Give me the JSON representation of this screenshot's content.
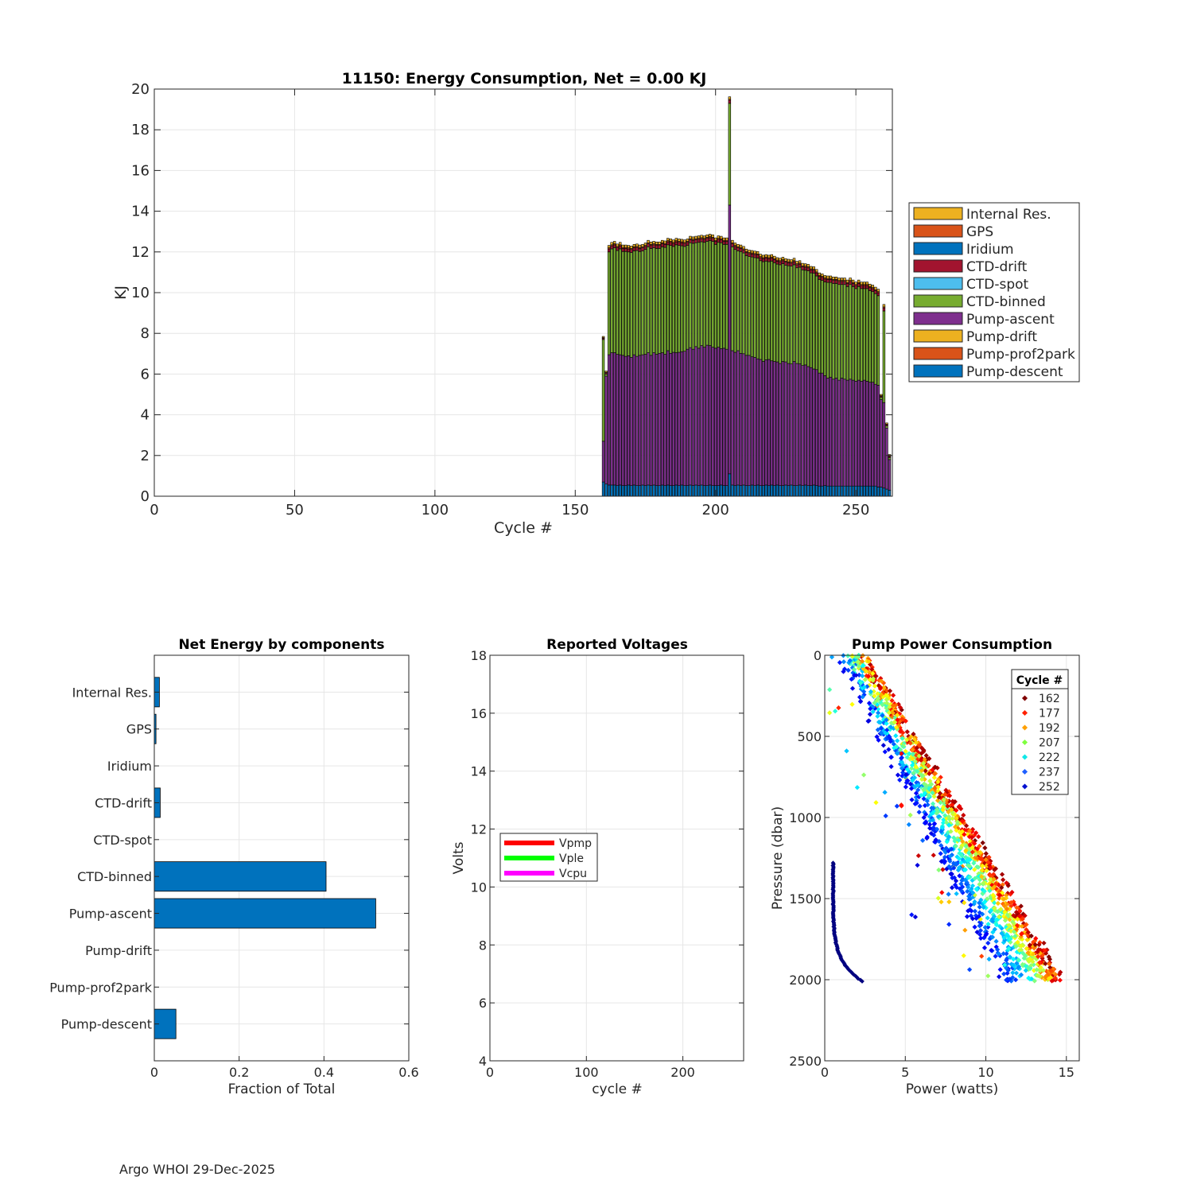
{
  "footer": "Argo WHOI 29-Dec-2025",
  "colors": {
    "internal_res": "#EDB120",
    "gps": "#D95319",
    "iridium": "#0072BD",
    "ctd_drift": "#A2142F",
    "ctd_spot": "#4DBEEE",
    "ctd_binned": "#77AC30",
    "pump_ascent": "#7E2F8E",
    "pump_drift": "#EDB120",
    "pump_prof2park": "#D95319",
    "pump_descent": "#0072BD",
    "grid": "#e6e6e6",
    "axis": "#262626",
    "vpmp": "#ff0000",
    "vple": "#00ff00",
    "vcpu": "#ff00ff"
  },
  "chart_data": [
    {
      "id": "energy",
      "type": "bar",
      "stacked": true,
      "title": "11150: Energy Consumption,  Net =   0.00 KJ",
      "xlabel": "Cycle #",
      "ylabel": "KJ",
      "xlim": [
        0,
        263
      ],
      "ylim": [
        0,
        20
      ],
      "xticks": [
        0,
        50,
        100,
        150,
        200,
        250
      ],
      "yticks": [
        0,
        2,
        4,
        6,
        8,
        10,
        12,
        14,
        16,
        18,
        20
      ],
      "grid": true,
      "legend_position": "outside-right",
      "legend": [
        "Internal Res.",
        "GPS",
        "Iridium",
        "CTD-drift",
        "CTD-spot",
        "CTD-binned",
        "Pump-ascent",
        "Pump-drift",
        "Pump-prof2park",
        "Pump-descent"
      ],
      "cycle_start": 160,
      "cycle_end": 262,
      "descent": [
        0.7,
        0.6,
        0.55,
        0.55,
        0.55,
        0.52,
        0.55,
        0.52,
        0.52,
        0.55,
        0.52,
        0.55,
        0.52,
        0.52,
        0.55,
        0.52,
        0.55,
        0.52,
        0.55,
        0.52,
        0.52,
        0.55,
        0.52,
        0.55,
        0.52,
        0.52,
        0.55,
        0.52,
        0.55,
        0.52,
        0.52,
        0.55,
        0.52,
        0.55,
        0.52,
        0.55,
        0.52,
        0.52,
        0.55,
        0.52,
        0.52,
        0.52,
        0.55,
        0.52,
        0.52,
        1.1,
        0.55,
        0.52,
        0.55,
        0.52,
        0.55,
        0.52,
        0.52,
        0.55,
        0.52,
        0.55,
        0.52,
        0.52,
        0.55,
        0.52,
        0.55,
        0.52,
        0.55,
        0.52,
        0.52,
        0.55,
        0.52,
        0.55,
        0.52,
        0.52,
        0.55,
        0.52,
        0.55,
        0.52,
        0.52,
        0.55,
        0.52,
        0.5,
        0.5,
        0.52,
        0.5,
        0.5,
        0.5,
        0.5,
        0.5,
        0.5,
        0.5,
        0.5,
        0.5,
        0.5,
        0.5,
        0.5,
        0.5,
        0.5,
        0.5,
        0.5,
        0.5,
        0.5,
        0.45,
        0.45,
        0.4,
        0.35,
        0.3
      ],
      "ascent": [
        2.0,
        5.3,
        6.4,
        6.5,
        6.5,
        6.45,
        6.4,
        6.4,
        6.35,
        6.35,
        6.3,
        6.4,
        6.35,
        6.4,
        6.4,
        6.45,
        6.5,
        6.4,
        6.5,
        6.45,
        6.5,
        6.5,
        6.45,
        6.6,
        6.5,
        6.55,
        6.5,
        6.55,
        6.55,
        6.6,
        6.7,
        6.75,
        6.7,
        6.8,
        6.75,
        6.85,
        6.8,
        6.9,
        6.85,
        6.8,
        6.75,
        6.8,
        6.7,
        6.75,
        6.7,
        13.2,
        6.6,
        6.55,
        6.6,
        6.5,
        6.45,
        6.4,
        6.4,
        6.3,
        6.3,
        6.2,
        6.2,
        6.1,
        6.15,
        6.2,
        6.1,
        6.1,
        6.05,
        6.0,
        6.1,
        6.05,
        6.0,
        5.95,
        6.1,
        6.0,
        5.95,
        5.9,
        5.9,
        5.85,
        5.8,
        5.7,
        5.7,
        5.55,
        5.55,
        5.4,
        5.3,
        5.35,
        5.25,
        5.3,
        5.2,
        5.3,
        5.25,
        5.2,
        5.25,
        5.2,
        5.15,
        5.2,
        5.15,
        5.2,
        5.15,
        5.1,
        5.1,
        5.0,
        5.0,
        4.3,
        4.2,
        3.0,
        1.5
      ],
      "binned": [
        5.0,
        0.1,
        5.05,
        5.1,
        5.15,
        5.1,
        5.2,
        5.1,
        5.15,
        5.1,
        5.15,
        5.1,
        5.2,
        5.1,
        5.1,
        5.15,
        5.2,
        5.25,
        5.15,
        5.2,
        5.15,
        5.2,
        5.25,
        5.2,
        5.3,
        5.2,
        5.3,
        5.25,
        5.2,
        5.15,
        5.1,
        5.15,
        5.2,
        5.1,
        5.2,
        5.1,
        5.15,
        5.1,
        5.15,
        5.2,
        5.1,
        5.15,
        5.2,
        5.1,
        5.15,
        5.0,
        5.1,
        5.05,
        4.9,
        5.0,
        4.95,
        4.9,
        4.85,
        4.9,
        4.9,
        4.95,
        4.85,
        4.9,
        4.85,
        4.8,
        4.9,
        4.85,
        4.8,
        4.85,
        4.8,
        4.75,
        4.8,
        4.8,
        4.75,
        4.7,
        4.75,
        4.7,
        4.65,
        4.7,
        4.65,
        4.7,
        4.6,
        4.6,
        4.55,
        4.6,
        4.7,
        4.65,
        4.7,
        4.65,
        4.7,
        4.6,
        4.65,
        4.6,
        4.65,
        4.6,
        4.55,
        4.6,
        4.55,
        4.5,
        4.55,
        4.5,
        4.45,
        4.45,
        4.4,
        0.1,
        4.5,
        0.1,
        0.1
      ],
      "drift": [
        0.06,
        0.06,
        0.15,
        0.15,
        0.15,
        0.15,
        0.15,
        0.15,
        0.15,
        0.15,
        0.15,
        0.15,
        0.15,
        0.15,
        0.15,
        0.15,
        0.15,
        0.15,
        0.15,
        0.15,
        0.15,
        0.15,
        0.15,
        0.15,
        0.15,
        0.15,
        0.15,
        0.15,
        0.15,
        0.15,
        0.15,
        0.15,
        0.15,
        0.15,
        0.15,
        0.15,
        0.15,
        0.15,
        0.15,
        0.15,
        0.15,
        0.15,
        0.15,
        0.15,
        0.15,
        0.15,
        0.15,
        0.15,
        0.15,
        0.15,
        0.15,
        0.15,
        0.15,
        0.15,
        0.15,
        0.15,
        0.15,
        0.15,
        0.15,
        0.15,
        0.15,
        0.15,
        0.15,
        0.15,
        0.15,
        0.15,
        0.15,
        0.15,
        0.15,
        0.15,
        0.15,
        0.15,
        0.15,
        0.15,
        0.15,
        0.15,
        0.15,
        0.15,
        0.15,
        0.15,
        0.15,
        0.15,
        0.15,
        0.15,
        0.15,
        0.15,
        0.15,
        0.15,
        0.15,
        0.15,
        0.15,
        0.15,
        0.15,
        0.15,
        0.15,
        0.15,
        0.15,
        0.15,
        0.15,
        0.06,
        0.15,
        0.06,
        0.06
      ],
      "gps": [
        0.03,
        0.03,
        0.05,
        0.05,
        0.05,
        0.05,
        0.05,
        0.05,
        0.05,
        0.05,
        0.05,
        0.05,
        0.05,
        0.05,
        0.05,
        0.05,
        0.05,
        0.05,
        0.05,
        0.05,
        0.05,
        0.05,
        0.05,
        0.05,
        0.05,
        0.05,
        0.05,
        0.05,
        0.05,
        0.05,
        0.05,
        0.05,
        0.05,
        0.05,
        0.05,
        0.05,
        0.05,
        0.05,
        0.05,
        0.05,
        0.05,
        0.05,
        0.05,
        0.05,
        0.05,
        0.05,
        0.05,
        0.05,
        0.05,
        0.05,
        0.05,
        0.05,
        0.05,
        0.05,
        0.05,
        0.05,
        0.05,
        0.05,
        0.05,
        0.05,
        0.05,
        0.05,
        0.05,
        0.05,
        0.05,
        0.05,
        0.05,
        0.05,
        0.05,
        0.05,
        0.05,
        0.05,
        0.05,
        0.05,
        0.05,
        0.05,
        0.05,
        0.05,
        0.05,
        0.05,
        0.05,
        0.05,
        0.05,
        0.05,
        0.05,
        0.05,
        0.05,
        0.05,
        0.05,
        0.05,
        0.05,
        0.05,
        0.05,
        0.05,
        0.05,
        0.05,
        0.05,
        0.05,
        0.05,
        0.03,
        0.05,
        0.03,
        0.03
      ],
      "internal": [
        0.06,
        0.06,
        0.12,
        0.12,
        0.12,
        0.12,
        0.12,
        0.12,
        0.12,
        0.12,
        0.12,
        0.12,
        0.12,
        0.12,
        0.12,
        0.12,
        0.12,
        0.12,
        0.12,
        0.12,
        0.12,
        0.12,
        0.12,
        0.12,
        0.12,
        0.12,
        0.12,
        0.12,
        0.12,
        0.12,
        0.12,
        0.12,
        0.12,
        0.12,
        0.12,
        0.12,
        0.12,
        0.12,
        0.12,
        0.12,
        0.12,
        0.12,
        0.12,
        0.12,
        0.12,
        0.12,
        0.12,
        0.12,
        0.12,
        0.12,
        0.12,
        0.12,
        0.12,
        0.12,
        0.12,
        0.12,
        0.12,
        0.12,
        0.12,
        0.12,
        0.12,
        0.12,
        0.12,
        0.12,
        0.12,
        0.12,
        0.12,
        0.12,
        0.12,
        0.12,
        0.12,
        0.12,
        0.12,
        0.12,
        0.12,
        0.12,
        0.12,
        0.12,
        0.12,
        0.12,
        0.12,
        0.12,
        0.12,
        0.12,
        0.12,
        0.12,
        0.12,
        0.12,
        0.12,
        0.12,
        0.12,
        0.12,
        0.12,
        0.12,
        0.12,
        0.12,
        0.12,
        0.12,
        0.12,
        0.06,
        0.12,
        0.06,
        0.06
      ]
    },
    {
      "id": "components",
      "type": "bar",
      "orientation": "horizontal",
      "title": "Net Energy by components",
      "xlabel": "Fraction of Total",
      "xlim": [
        0,
        0.6
      ],
      "xticks": [
        0,
        0.2,
        0.4,
        0.6
      ],
      "xtick_labels": [
        "0",
        "0.2",
        "0.4",
        "0.6"
      ],
      "categories": [
        "Internal Res.",
        "GPS",
        "Iridium",
        "CTD-drift",
        "CTD-spot",
        "CTD-binned",
        "Pump-ascent",
        "Pump-drift",
        "Pump-prof2park",
        "Pump-descent"
      ],
      "values": [
        0.012,
        0.004,
        0.0,
        0.014,
        0.0,
        0.405,
        0.522,
        0.0,
        0.0,
        0.051
      ],
      "grid": true
    },
    {
      "id": "voltages",
      "type": "line",
      "title": "Reported Voltages",
      "xlabel": "cycle #",
      "ylabel": "Volts",
      "xlim": [
        0,
        263
      ],
      "ylim": [
        4,
        18
      ],
      "xticks": [
        0,
        100,
        200
      ],
      "yticks": [
        4,
        6,
        8,
        10,
        12,
        14,
        16,
        18
      ],
      "series": [
        {
          "name": "Vpmp",
          "values": []
        },
        {
          "name": "Vple",
          "values": []
        },
        {
          "name": "Vcpu",
          "values": []
        }
      ],
      "legend_position": "left-middle",
      "grid": true
    },
    {
      "id": "pump",
      "type": "scatter",
      "title": "Pump Power Consumption",
      "xlabel": "Power (watts)",
      "ylabel": "Pressure (dbar)",
      "xlim": [
        0,
        15.8
      ],
      "ylim": [
        0,
        2500
      ],
      "y_reversed": true,
      "xticks": [
        0,
        5,
        10,
        15
      ],
      "yticks": [
        0,
        500,
        1000,
        1500,
        2000,
        2500
      ],
      "legend_title": "Cycle #",
      "legend_position": "top-right",
      "legend": [
        {
          "cycle": "162",
          "color": "#800000"
        },
        {
          "cycle": "177",
          "color": "#ff2000"
        },
        {
          "cycle": "192",
          "color": "#ffa000"
        },
        {
          "cycle": "207",
          "color": "#7fff40"
        },
        {
          "cycle": "222",
          "color": "#10e8e8"
        },
        {
          "cycle": "237",
          "color": "#2060ff"
        },
        {
          "cycle": "252",
          "color": "#0010d0"
        }
      ],
      "relation": {
        "power_at_0": 2.8,
        "power_at_2000": 15.0,
        "spread_watts": 3.5
      },
      "low_branch": {
        "pressure_range": [
          1280,
          2010
        ],
        "power_range": [
          0.5,
          2.3
        ]
      },
      "grid": true
    }
  ]
}
